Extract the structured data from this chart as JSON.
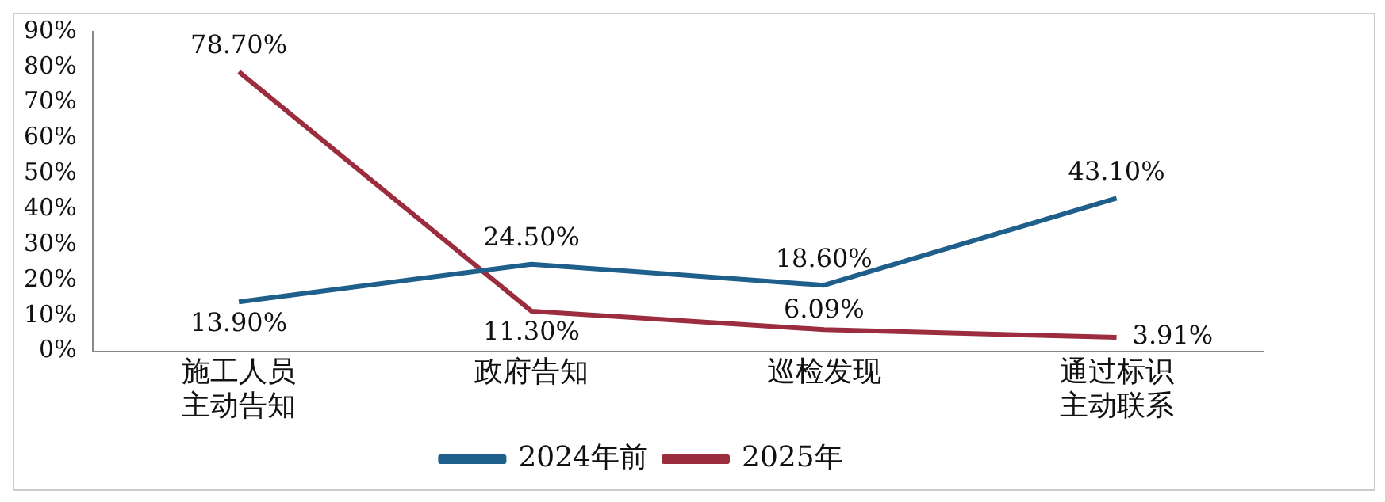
{
  "chart_data": {
    "type": "line",
    "categories": [
      "施工人员主动告知",
      "政府告知",
      "巡检发现",
      "通过标识主动联系"
    ],
    "series": [
      {
        "name": "2024年前",
        "color": "#1f5f8b",
        "values": [
          13.9,
          24.5,
          18.6,
          43.1
        ],
        "value_labels": [
          "13.90%",
          "24.50%",
          "18.60%",
          "43.10%"
        ]
      },
      {
        "name": "2025年",
        "color": "#9b2d3f",
        "values": [
          78.7,
          11.3,
          6.09,
          3.91
        ],
        "value_labels": [
          "78.70%",
          "11.30%",
          "6.09%",
          "3.91%"
        ]
      }
    ],
    "ylim": [
      0,
      90
    ],
    "yticks": [
      {
        "value": 0,
        "label": "0%"
      },
      {
        "value": 10,
        "label": "10%"
      },
      {
        "value": 20,
        "label": "20%"
      },
      {
        "value": 30,
        "label": "30%"
      },
      {
        "value": 40,
        "label": "40%"
      },
      {
        "value": 50,
        "label": "50%"
      },
      {
        "value": 60,
        "label": "60%"
      },
      {
        "value": 70,
        "label": "70%"
      },
      {
        "value": 80,
        "label": "80%"
      },
      {
        "value": 90,
        "label": "90%"
      }
    ],
    "grid": false,
    "legend": "bottom",
    "marker": "none",
    "line_style": "solid"
  }
}
